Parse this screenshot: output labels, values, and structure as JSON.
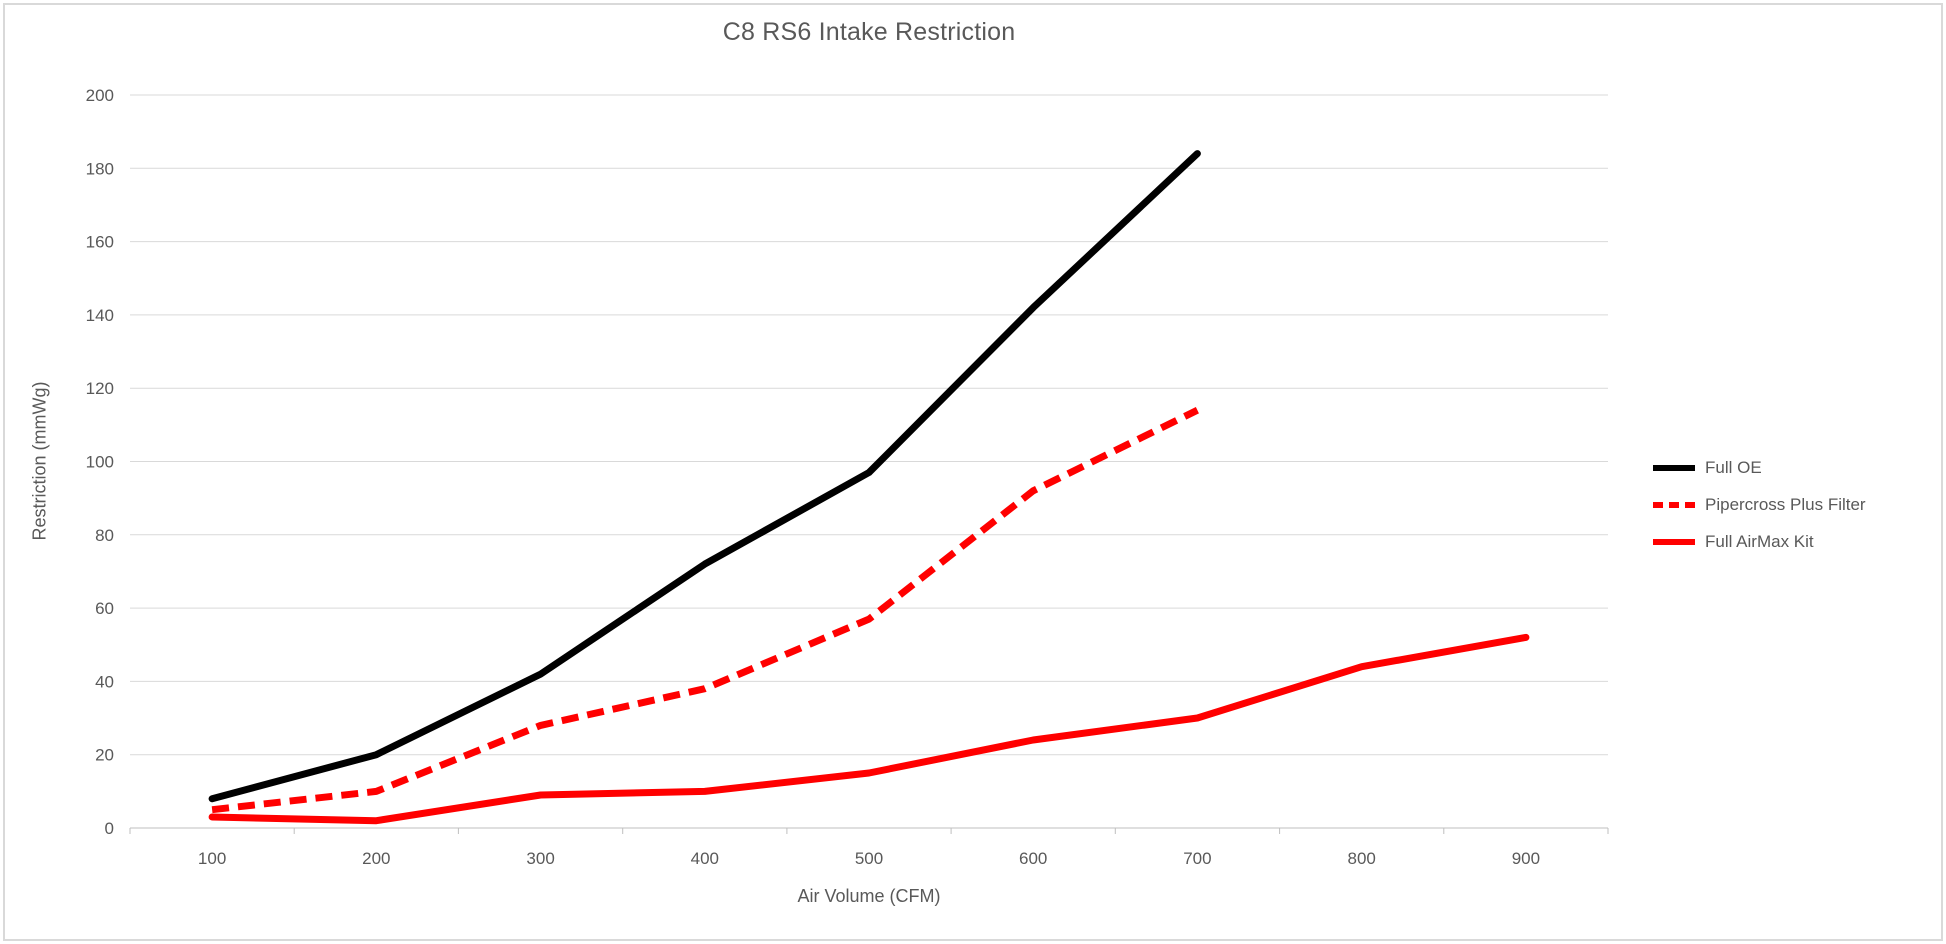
{
  "window": {
    "background": "#ffffff",
    "frame_border_color": "#d9d9d9"
  },
  "chart_data": {
    "type": "line",
    "title": "C8 RS6 Intake Restriction",
    "xlabel": "Air Volume (CFM)",
    "ylabel": "Restriction (mmWg)",
    "categories": [
      100,
      200,
      300,
      400,
      500,
      600,
      700,
      800,
      900
    ],
    "series": [
      {
        "name": "Full OE",
        "color": "#000000",
        "dash": "solid",
        "values": [
          8,
          20,
          42,
          72,
          97,
          142,
          184,
          null,
          null
        ]
      },
      {
        "name": "Pipercross Plus Filter",
        "color": "#ff0000",
        "dash": "dashed",
        "values": [
          5,
          10,
          28,
          38,
          57,
          92,
          114,
          null,
          null
        ]
      },
      {
        "name": "Full AirMax Kit",
        "color": "#ff0000",
        "dash": "solid",
        "values": [
          3,
          2,
          9,
          10,
          15,
          24,
          30,
          44,
          52
        ]
      }
    ],
    "ylim": [
      0,
      200
    ],
    "yticks": [
      0,
      20,
      40,
      60,
      80,
      100,
      120,
      140,
      160,
      180,
      200
    ],
    "grid": true,
    "legend_position": "right",
    "gridline_color": "#d9d9d9",
    "axis_line_color": "#bfbfbf",
    "tick_label_color": "#595959",
    "title_color": "#595959"
  }
}
